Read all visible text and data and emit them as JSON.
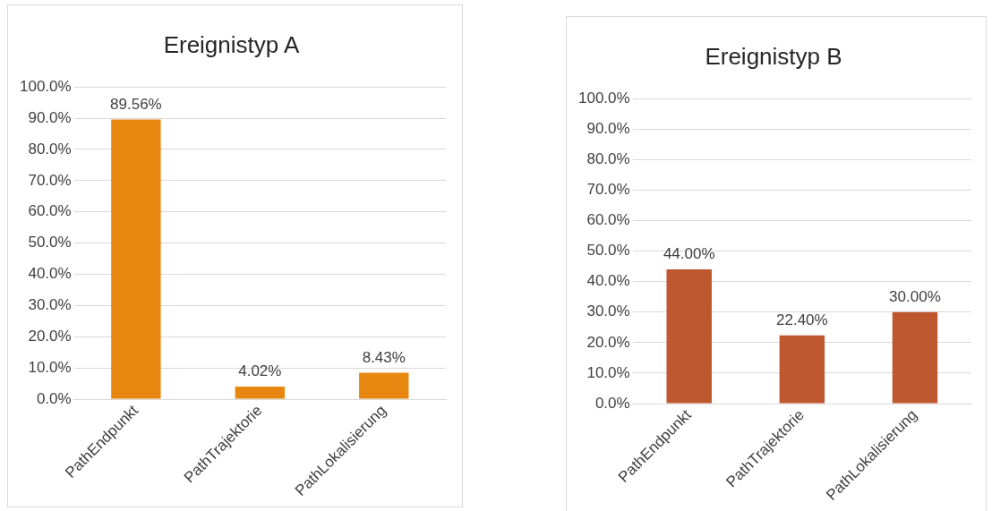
{
  "chart_data": [
    {
      "type": "bar",
      "title": "Ereignistyp A",
      "categories": [
        "PathEndpunkt",
        "PathTrajektorie",
        "PathLokalisierung"
      ],
      "values": [
        89.56,
        4.02,
        8.43
      ],
      "value_labels": [
        "89.56%",
        "4.02%",
        "8.43%"
      ],
      "color": "#e8870f",
      "ylim": [
        0,
        100
      ],
      "yticks": [
        {
          "value": 0,
          "label": "0.0%"
        },
        {
          "value": 10,
          "label": "10.0%"
        },
        {
          "value": 20,
          "label": "20.0%"
        },
        {
          "value": 30,
          "label": "30.0%"
        },
        {
          "value": 40,
          "label": "40.0%"
        },
        {
          "value": 50,
          "label": "50.0%"
        },
        {
          "value": 60,
          "label": "60.0%"
        },
        {
          "value": 70,
          "label": "70.0%"
        },
        {
          "value": 80,
          "label": "80.0%"
        },
        {
          "value": 90,
          "label": "90.0%"
        },
        {
          "value": 100,
          "label": "100.0%"
        }
      ],
      "grid": "y",
      "legend": false
    },
    {
      "type": "bar",
      "title": "Ereignistyp B",
      "categories": [
        "PathEndpunkt",
        "PathTrajektorie",
        "PathLokalisierung"
      ],
      "values": [
        44.0,
        22.4,
        30.0
      ],
      "value_labels": [
        "44.00%",
        "22.40%",
        "30.00%"
      ],
      "color": "#c0582f",
      "ylim": [
        0,
        100
      ],
      "yticks": [
        {
          "value": 0,
          "label": "0.0%"
        },
        {
          "value": 10,
          "label": "10.0%"
        },
        {
          "value": 20,
          "label": "20.0%"
        },
        {
          "value": 30,
          "label": "30.0%"
        },
        {
          "value": 40,
          "label": "40.0%"
        },
        {
          "value": 50,
          "label": "50.0%"
        },
        {
          "value": 60,
          "label": "60.0%"
        },
        {
          "value": 70,
          "label": "70.0%"
        },
        {
          "value": 80,
          "label": "80.0%"
        },
        {
          "value": 90,
          "label": "90.0%"
        },
        {
          "value": 100,
          "label": "100.0%"
        }
      ],
      "grid": "y",
      "legend": false
    }
  ]
}
